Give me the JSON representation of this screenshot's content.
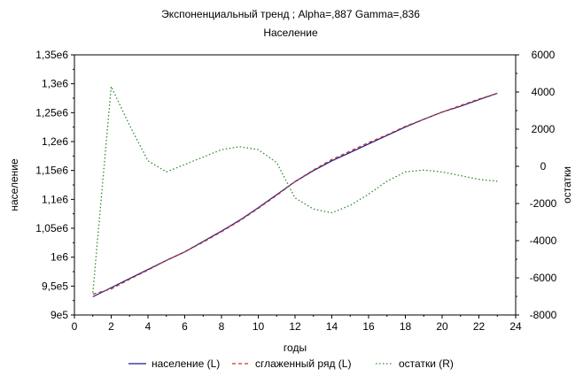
{
  "chart_data": {
    "type": "line",
    "title": "Экспоненциальный тренд ; Alpha=,887 Gamma=,836",
    "subtitle": "Население",
    "xlabel": "годы",
    "ylabel_left": "население",
    "ylabel_right": "остатки",
    "xlim": [
      0,
      24
    ],
    "ylim_left": [
      950000,
      1350000
    ],
    "ylim_right": [
      -8000,
      6000
    ],
    "x_ticks": [
      "0",
      "2",
      "4",
      "6",
      "8",
      "10",
      "12",
      "14",
      "16",
      "18",
      "20",
      "22",
      "24"
    ],
    "y_left_ticks": [
      "9e5",
      "9,5e5",
      "1e6",
      "1,05e6",
      "1,1e6",
      "1,15e6",
      "1,2e6",
      "1,25e6",
      "1,3e6",
      "1,35e6"
    ],
    "y_right_ticks": [
      "-8000",
      "-6000",
      "-4000",
      "-2000",
      "0",
      "2000",
      "4000",
      "6000"
    ],
    "grid": false,
    "legend_position": "bottom",
    "x": [
      1,
      2,
      3,
      4,
      5,
      6,
      7,
      8,
      9,
      10,
      11,
      12,
      13,
      14,
      15,
      16,
      17,
      18,
      19,
      20,
      21,
      22,
      23
    ],
    "series": [
      {
        "name": "население (L)",
        "axis": "left",
        "style": "solid",
        "color": "#1a1a8c",
        "values": [
          978000,
          992000,
          1006000,
          1020000,
          1034000,
          1047000,
          1063000,
          1079000,
          1096000,
          1115000,
          1135000,
          1155000,
          1172000,
          1187000,
          1200000,
          1213000,
          1226000,
          1239000,
          1251000,
          1262000,
          1271000,
          1281000,
          1291000
        ]
      },
      {
        "name": "сглаженный ряд (L)",
        "axis": "left",
        "style": "dashed",
        "color": "#c0392b",
        "values": [
          982000,
          990000,
          1005000,
          1019000,
          1034000,
          1047000,
          1062000,
          1078000,
          1095000,
          1114000,
          1134000,
          1155000,
          1173000,
          1189000,
          1202000,
          1215000,
          1227000,
          1240000,
          1251000,
          1262000,
          1272000,
          1282000,
          1291000
        ]
      },
      {
        "name": "остатки (R)",
        "axis": "right",
        "style": "dotted",
        "color": "#2e8b2e",
        "values": [
          -6800,
          4300,
          2200,
          300,
          -300,
          100,
          500,
          900,
          1050,
          900,
          200,
          -1700,
          -2300,
          -2500,
          -2100,
          -1500,
          -800,
          -300,
          -200,
          -300,
          -500,
          -700,
          -800
        ]
      }
    ]
  }
}
